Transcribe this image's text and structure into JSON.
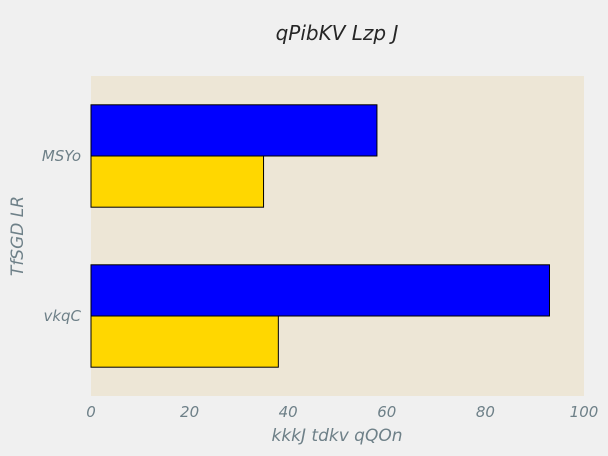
{
  "chart_data": {
    "type": "bar",
    "orientation": "horizontal",
    "title": "qPibKV Lzp J",
    "xlabel": "kkkJ tdkv qQOn",
    "ylabel": "TfSGD LR",
    "categories": [
      "vkqC",
      "MSYo"
    ],
    "series": [
      {
        "color": "#0000ff",
        "values": [
          93,
          58
        ]
      },
      {
        "color": "#ffd700",
        "values": [
          38,
          35
        ]
      }
    ],
    "xlim": [
      0,
      100
    ],
    "xticks": [
      "0",
      "20",
      "40",
      "60",
      "80",
      "100"
    ],
    "grid": false,
    "background_color": "#ede6d6",
    "legend": "none"
  }
}
